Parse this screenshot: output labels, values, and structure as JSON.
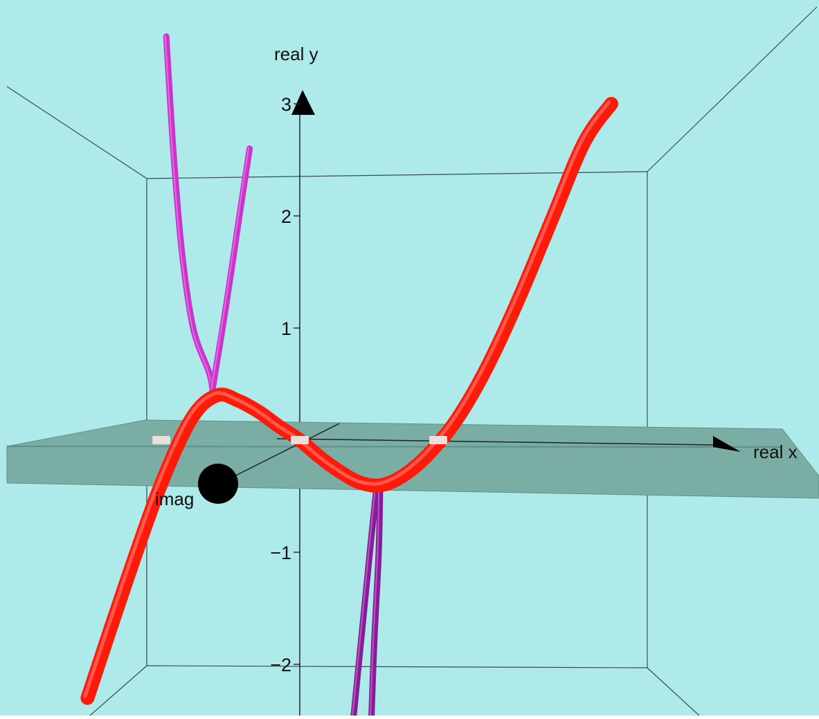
{
  "colors": {
    "background": "#aeeaea",
    "plane": "#7aaea5",
    "plane_edge": "#5f8f87",
    "box_edge": "#3a4a4a",
    "real_curve": "#ff1a0a",
    "complex_branch_upper": "#cc33cc",
    "complex_branch_lower": "#8a1a99",
    "root_marker": "#e8e0dc",
    "axis": "#222222"
  },
  "chart_data": {
    "type": "line",
    "view": "3d",
    "title": "",
    "axes": {
      "x": {
        "label": "real x",
        "range": [
          -2,
          2.5
        ]
      },
      "y": {
        "label": "real y",
        "range": [
          -2.3,
          3
        ]
      },
      "z": {
        "label": "imag",
        "range": [
          0,
          1
        ]
      }
    },
    "y_ticks": [
      {
        "value": 3,
        "label": "3"
      },
      {
        "value": 2,
        "label": "2"
      },
      {
        "value": 1,
        "label": "1"
      },
      {
        "value": -1,
        "label": "−1"
      },
      {
        "value": -2,
        "label": "−2"
      }
    ],
    "series": [
      {
        "kind": "real_curve",
        "x": [
          -1.6,
          -1.4,
          -1.2,
          -1.0,
          -0.8,
          -0.6,
          -0.4,
          -0.2,
          0.0,
          0.2,
          0.4,
          0.6,
          0.8,
          1.0,
          1.2,
          1.4,
          1.6,
          1.8,
          2.0,
          2.2,
          2.4
        ],
        "y": [
          -2.3,
          -1.3,
          -0.4,
          0.2,
          0.4,
          0.35,
          0.25,
          0.12,
          0.0,
          -0.15,
          -0.28,
          -0.38,
          -0.4,
          -0.3,
          -0.1,
          0.2,
          0.65,
          1.25,
          1.95,
          2.65,
          3.0
        ]
      },
      {
        "kind": "complex_branch",
        "x": [
          -1.7,
          -1.5,
          -1.3,
          -1.1,
          -0.9,
          -0.85
        ],
        "y": [
          3.6,
          2.6,
          1.7,
          1.0,
          0.6,
          0.45
        ]
      },
      {
        "kind": "complex_branch",
        "x": [
          -0.85,
          -0.83,
          -0.82,
          -0.81
        ],
        "y": [
          0.45,
          1.2,
          2.0,
          2.6
        ]
      },
      {
        "kind": "complex_branch",
        "x": [
          0.75,
          0.77,
          0.8,
          0.83
        ],
        "y": [
          -0.4,
          -1.0,
          -1.8,
          -2.6
        ]
      },
      {
        "kind": "complex_branch",
        "x": [
          0.78,
          0.85,
          0.92,
          1.0
        ],
        "y": [
          -0.4,
          -1.0,
          -1.8,
          -2.6
        ]
      }
    ],
    "roots": [
      {
        "x": -1.25,
        "y": 0
      },
      {
        "x": 0.0,
        "y": 0
      },
      {
        "x": 1.25,
        "y": 0
      }
    ],
    "grid": false,
    "legend": "none"
  }
}
